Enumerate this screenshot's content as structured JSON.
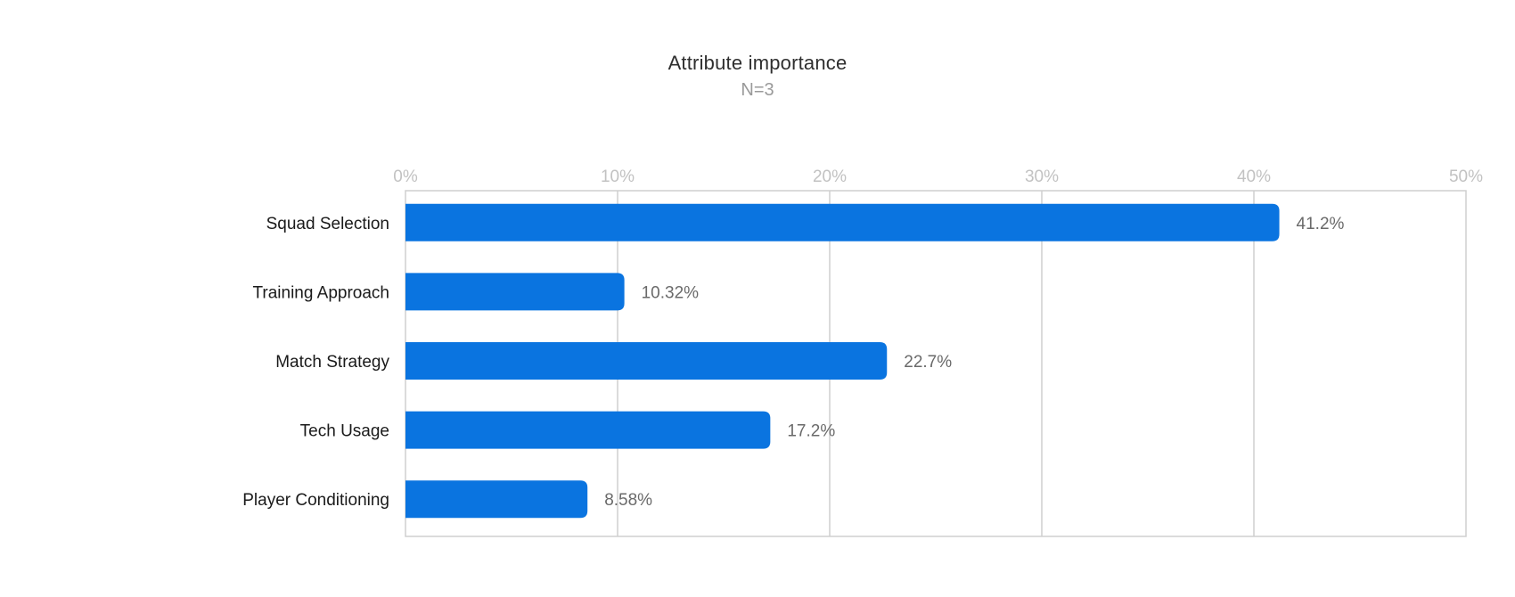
{
  "chart_data": {
    "type": "bar",
    "orientation": "horizontal",
    "title": "Attribute importance",
    "subtitle": "N=3",
    "categories": [
      "Squad Selection",
      "Training Approach",
      "Match Strategy",
      "Tech Usage",
      "Player Conditioning"
    ],
    "values": [
      41.2,
      10.32,
      22.7,
      17.2,
      8.58
    ],
    "value_labels": [
      "41.2%",
      "10.32%",
      "22.7%",
      "17.2%",
      "8.58%"
    ],
    "xticks": [
      0,
      10,
      20,
      30,
      40,
      50
    ],
    "xtick_labels": [
      "0%",
      "10%",
      "20%",
      "30%",
      "40%",
      "50%"
    ],
    "xlim": [
      0,
      50
    ],
    "xaxis_position": "top",
    "grid": true,
    "legend": "none",
    "colors": {
      "bar": "#0a74e0",
      "grid": "#cfcfcf"
    }
  }
}
